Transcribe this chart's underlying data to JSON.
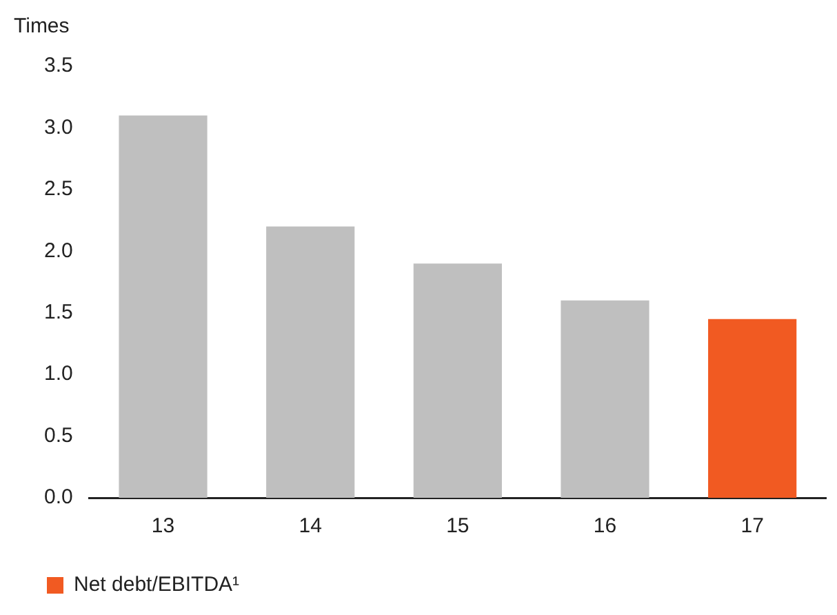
{
  "chart_data": {
    "type": "bar",
    "ylabel": "Times",
    "categories": [
      "13",
      "14",
      "15",
      "16",
      "17"
    ],
    "series": [
      {
        "name": "Net debt/EBITDA¹",
        "color": "#f15a22",
        "colors": [
          "#bfbfbf",
          "#bfbfbf",
          "#bfbfbf",
          "#bfbfbf",
          "#f15a22"
        ],
        "values": [
          3.1,
          2.2,
          1.9,
          1.6,
          1.45
        ]
      }
    ],
    "ylim": [
      0,
      3.5
    ],
    "yticks": [
      {
        "value": 0,
        "label": "0.0"
      },
      0.5,
      {
        "value": 1,
        "label": "1.0"
      },
      1.5,
      {
        "value": 2,
        "label": "2.0"
      },
      2.5,
      {
        "value": 3,
        "label": "3.0"
      },
      3.5
    ],
    "grid": false,
    "legend": "bottom left"
  }
}
